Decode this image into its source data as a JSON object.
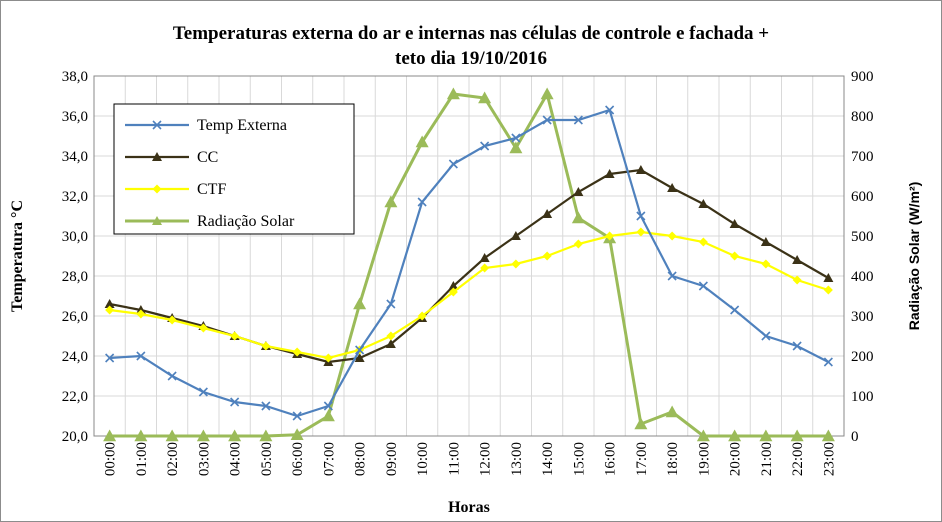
{
  "chart_data": {
    "type": "line",
    "title_line1": "Temperaturas externa do ar e internas nas células de controle e fachada +",
    "title_line2": "teto dia 19/10/2016",
    "xlabel": "Horas",
    "ylabel": "Temperatura °C",
    "y2label": "Radiação Solar (W/m²)",
    "ylim": [
      20,
      38
    ],
    "y2lim": [
      0,
      900
    ],
    "yticks": [
      "20,0",
      "22,0",
      "24,0",
      "26,0",
      "28,0",
      "30,0",
      "32,0",
      "34,0",
      "36,0",
      "38,0"
    ],
    "y2ticks": [
      "0",
      "100",
      "200",
      "300",
      "400",
      "500",
      "600",
      "700",
      "800",
      "900"
    ],
    "categories": [
      "00:00",
      "01:00",
      "02:00",
      "03:00",
      "04:00",
      "05:00",
      "06:00",
      "07:00",
      "08:00",
      "09:00",
      "10:00",
      "11:00",
      "12:00",
      "13:00",
      "14:00",
      "15:00",
      "16:00",
      "17:00",
      "18:00",
      "19:00",
      "20:00",
      "21:00",
      "22:00",
      "23:00"
    ],
    "legend_position": "top-left",
    "series": [
      {
        "name": "Temp Externa",
        "axis": "left",
        "marker": "x",
        "color": "#4f81bd",
        "values": [
          23.9,
          24.0,
          23.0,
          22.2,
          21.7,
          21.5,
          21.0,
          21.5,
          24.3,
          26.6,
          31.7,
          33.6,
          34.5,
          34.9,
          35.8,
          35.8,
          36.3,
          31.0,
          28.0,
          27.5,
          26.3,
          25.0,
          24.5,
          23.7
        ]
      },
      {
        "name": "CC",
        "axis": "left",
        "marker": "triangle",
        "color": "#3b3217",
        "values": [
          26.6,
          26.3,
          25.9,
          25.5,
          25.0,
          24.5,
          24.1,
          23.7,
          23.9,
          24.6,
          25.9,
          27.5,
          28.9,
          30.0,
          31.1,
          32.2,
          33.1,
          33.3,
          32.4,
          31.6,
          30.6,
          29.7,
          28.8,
          27.9
        ]
      },
      {
        "name": "CTF",
        "axis": "left",
        "marker": "diamond",
        "color": "#ffff00",
        "values": [
          26.3,
          26.1,
          25.8,
          25.4,
          25.0,
          24.5,
          24.2,
          23.9,
          24.3,
          25.0,
          26.0,
          27.2,
          28.4,
          28.6,
          29.0,
          29.6,
          30.0,
          30.2,
          30.0,
          29.7,
          29.0,
          28.6,
          27.8,
          27.3
        ]
      },
      {
        "name": "Radiação Solar",
        "axis": "right",
        "marker": "triangle",
        "color": "#9bbb59",
        "values": [
          0,
          0,
          0,
          0,
          0,
          0,
          3,
          50,
          330,
          585,
          735,
          855,
          845,
          720,
          855,
          545,
          495,
          30,
          60,
          0,
          0,
          0,
          0,
          0
        ]
      }
    ]
  }
}
